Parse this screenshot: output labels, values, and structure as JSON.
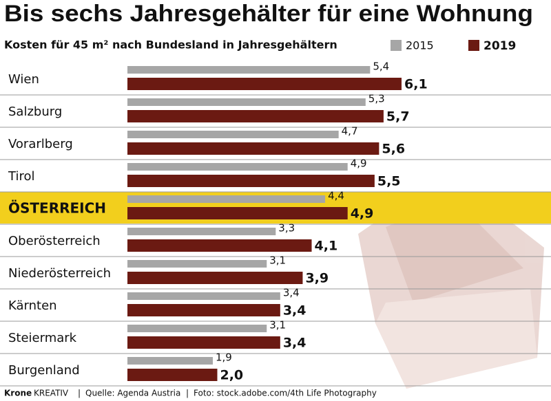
{
  "chart_data": {
    "type": "bar",
    "orientation": "horizontal",
    "title": "Bis sechs Jahresgehälter für eine Wohnung",
    "subtitle": "Kosten für 45 m² nach Bundesland in Jahresgehältern",
    "categories": [
      "Wien",
      "Salzburg",
      "Vorarlberg",
      "Tirol",
      "ÖSTERREICH",
      "Oberösterreich",
      "Niederösterreich",
      "Kärnten",
      "Steiermark",
      "Burgenland"
    ],
    "highlight": 4,
    "series": [
      {
        "name": "2015",
        "color": "#a6a6a6",
        "values": [
          5.4,
          5.3,
          4.7,
          4.9,
          4.4,
          3.3,
          3.1,
          3.4,
          3.1,
          1.9
        ],
        "value_labels": [
          "5,4",
          "5,3",
          "4,7",
          "4,9",
          "4,4",
          "3,3",
          "3,1",
          "3,4",
          "3,1",
          "1,9"
        ]
      },
      {
        "name": "2019",
        "color": "#6b1a12",
        "values": [
          6.1,
          5.7,
          5.6,
          5.5,
          4.9,
          4.1,
          3.9,
          3.4,
          3.4,
          2.0
        ],
        "value_labels": [
          "6,1",
          "5,7",
          "5,6",
          "5,5",
          "4,9",
          "4,1",
          "3,9",
          "3,4",
          "3,4",
          "2,0"
        ]
      }
    ],
    "footer": {
      "brand": "Krone",
      "brand_suffix": "KREATIV",
      "source": "Quelle: Agenda Austria",
      "photo": "Foto: stock.adobe.com/4th Life Photography"
    }
  }
}
